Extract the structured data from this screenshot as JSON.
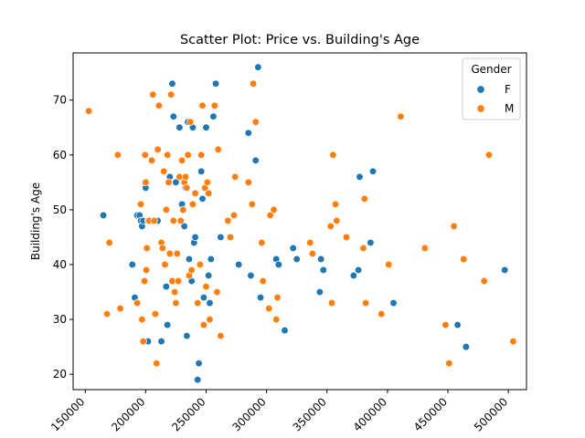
{
  "chart_data": {
    "type": "scatter",
    "title": "Scatter Plot: Price vs. Building's Age",
    "xlabel": "",
    "ylabel": "Building's Age",
    "xlim": [
      140000,
      515000
    ],
    "ylim": [
      17.2,
      78.6
    ],
    "xticks": [
      150000,
      200000,
      250000,
      300000,
      350000,
      400000,
      450000,
      500000
    ],
    "xtick_labels": [
      "150000",
      "200000",
      "250000",
      "300000",
      "350000",
      "400000",
      "450000",
      "500000"
    ],
    "yticks": [
      20,
      30,
      40,
      50,
      60,
      70
    ],
    "ytick_labels": [
      "20",
      "30",
      "40",
      "50",
      "60",
      "70"
    ],
    "grid": false,
    "legend": {
      "title": "Gender",
      "placement": "top-right",
      "entries": [
        "F",
        "M"
      ]
    },
    "series": [
      {
        "name": "F",
        "color": "#1f77b4",
        "points": [
          [
            165000,
            49
          ],
          [
            189000,
            40
          ],
          [
            191000,
            34
          ],
          [
            193000,
            49
          ],
          [
            195000,
            49
          ],
          [
            196000,
            48
          ],
          [
            197000,
            47
          ],
          [
            198000,
            48
          ],
          [
            200000,
            54
          ],
          [
            202000,
            26
          ],
          [
            205000,
            48
          ],
          [
            208000,
            48
          ],
          [
            210000,
            48
          ],
          [
            213000,
            26
          ],
          [
            217000,
            36
          ],
          [
            218000,
            29
          ],
          [
            220000,
            56
          ],
          [
            222000,
            73
          ],
          [
            223000,
            67
          ],
          [
            225000,
            55
          ],
          [
            228000,
            65
          ],
          [
            230000,
            51
          ],
          [
            232000,
            47
          ],
          [
            233000,
            54
          ],
          [
            234000,
            27
          ],
          [
            235000,
            66
          ],
          [
            236000,
            41
          ],
          [
            238000,
            37
          ],
          [
            239000,
            65
          ],
          [
            240000,
            44
          ],
          [
            241000,
            45
          ],
          [
            243000,
            19
          ],
          [
            244000,
            22
          ],
          [
            246000,
            57
          ],
          [
            247000,
            52
          ],
          [
            248000,
            34
          ],
          [
            250000,
            65
          ],
          [
            252000,
            38
          ],
          [
            253000,
            33
          ],
          [
            254000,
            41
          ],
          [
            256000,
            67
          ],
          [
            258000,
            73
          ],
          [
            262000,
            45
          ],
          [
            277000,
            40
          ],
          [
            285000,
            64
          ],
          [
            287000,
            38
          ],
          [
            291000,
            59
          ],
          [
            293000,
            76
          ],
          [
            295000,
            34
          ],
          [
            308000,
            41
          ],
          [
            310000,
            40
          ],
          [
            315000,
            28
          ],
          [
            322000,
            43
          ],
          [
            325000,
            41
          ],
          [
            344000,
            35
          ],
          [
            345000,
            41
          ],
          [
            347000,
            39
          ],
          [
            372000,
            38
          ],
          [
            376000,
            39
          ],
          [
            377000,
            56
          ],
          [
            386000,
            44
          ],
          [
            388000,
            57
          ],
          [
            405000,
            33
          ],
          [
            458000,
            29
          ],
          [
            465000,
            25
          ],
          [
            497000,
            39
          ]
        ]
      },
      {
        "name": "M",
        "color": "#ff7f0e",
        "points": [
          [
            153000,
            68
          ],
          [
            168000,
            31
          ],
          [
            170000,
            44
          ],
          [
            177000,
            60
          ],
          [
            179000,
            32
          ],
          [
            193000,
            33
          ],
          [
            196000,
            51
          ],
          [
            197000,
            30
          ],
          [
            198000,
            26
          ],
          [
            199000,
            37
          ],
          [
            199500,
            60
          ],
          [
            200000,
            55
          ],
          [
            200500,
            39
          ],
          [
            201000,
            43
          ],
          [
            202000,
            48
          ],
          [
            203000,
            48
          ],
          [
            205000,
            59
          ],
          [
            206000,
            71
          ],
          [
            207000,
            48
          ],
          [
            208000,
            31
          ],
          [
            209000,
            22
          ],
          [
            210000,
            61
          ],
          [
            211000,
            69
          ],
          [
            213000,
            44
          ],
          [
            214000,
            43
          ],
          [
            215000,
            57
          ],
          [
            216000,
            40
          ],
          [
            217000,
            50
          ],
          [
            218000,
            60
          ],
          [
            219000,
            55
          ],
          [
            220000,
            42
          ],
          [
            221000,
            71
          ],
          [
            222000,
            37
          ],
          [
            223000,
            48
          ],
          [
            224000,
            35
          ],
          [
            225000,
            33
          ],
          [
            226000,
            42
          ],
          [
            227000,
            37
          ],
          [
            228000,
            56
          ],
          [
            229000,
            48
          ],
          [
            230000,
            59
          ],
          [
            231000,
            50
          ],
          [
            232000,
            55
          ],
          [
            233000,
            56
          ],
          [
            234000,
            54
          ],
          [
            235000,
            60
          ],
          [
            236000,
            38
          ],
          [
            237000,
            66
          ],
          [
            238000,
            39
          ],
          [
            239000,
            51
          ],
          [
            241000,
            53
          ],
          [
            243000,
            33
          ],
          [
            245000,
            40
          ],
          [
            246000,
            60
          ],
          [
            247000,
            69
          ],
          [
            248000,
            29
          ],
          [
            249000,
            54
          ],
          [
            250000,
            36
          ],
          [
            251000,
            55
          ],
          [
            252000,
            53
          ],
          [
            253000,
            30
          ],
          [
            257000,
            69
          ],
          [
            259000,
            35
          ],
          [
            260000,
            61
          ],
          [
            262000,
            27
          ],
          [
            268000,
            48
          ],
          [
            270000,
            45
          ],
          [
            273000,
            49
          ],
          [
            274000,
            56
          ],
          [
            285000,
            55
          ],
          [
            288000,
            51
          ],
          [
            289000,
            73
          ],
          [
            291000,
            66
          ],
          [
            296000,
            44
          ],
          [
            297000,
            37
          ],
          [
            302000,
            32
          ],
          [
            303000,
            49
          ],
          [
            306000,
            50
          ],
          [
            308000,
            30
          ],
          [
            309000,
            34
          ],
          [
            336000,
            44
          ],
          [
            338000,
            42
          ],
          [
            353000,
            47
          ],
          [
            354000,
            33
          ],
          [
            355000,
            60
          ],
          [
            357000,
            51
          ],
          [
            358000,
            48
          ],
          [
            366000,
            45
          ],
          [
            380000,
            43
          ],
          [
            381000,
            52
          ],
          [
            382000,
            33
          ],
          [
            395000,
            31
          ],
          [
            401000,
            40
          ],
          [
            411000,
            67
          ],
          [
            431000,
            43
          ],
          [
            448000,
            29
          ],
          [
            451000,
            22
          ],
          [
            455000,
            47
          ],
          [
            463000,
            41
          ],
          [
            480000,
            37
          ],
          [
            484000,
            60
          ],
          [
            504000,
            26
          ]
        ]
      }
    ]
  }
}
